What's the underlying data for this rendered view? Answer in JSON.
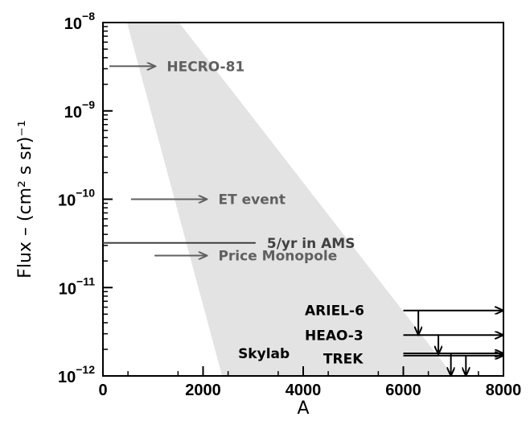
{
  "chart_data": {
    "type": "scatter",
    "title": "",
    "xlabel": "A",
    "ylabel": "Flux – (cm² s sr)⁻¹",
    "xlim": [
      0,
      8000
    ],
    "ylim": [
      1e-12,
      1e-08
    ],
    "yscale": "log",
    "x_ticks": [
      {
        "value": 0,
        "label": "0"
      },
      {
        "value": 2000,
        "label": "2000"
      },
      {
        "value": 4000,
        "label": "4000"
      },
      {
        "value": 6000,
        "label": "6000"
      },
      {
        "value": 8000,
        "label": "8000"
      }
    ],
    "y_ticks": [
      {
        "exp": -8,
        "base": "10",
        "sup": "−8"
      },
      {
        "exp": -9,
        "base": "10",
        "sup": "−9"
      },
      {
        "exp": -10,
        "base": "10",
        "sup": "−10"
      },
      {
        "exp": -11,
        "base": "10",
        "sup": "−11"
      },
      {
        "exp": -12,
        "base": "10",
        "sup": "−12"
      }
    ],
    "allowed_region": {
      "color": "#e3e3e3",
      "polygon": [
        [
          480,
          1e-08
        ],
        [
          1520,
          1e-08
        ],
        [
          7000,
          1e-12
        ],
        [
          2380,
          1e-12
        ]
      ]
    },
    "observations": [
      {
        "label": "HECRO-81",
        "color": "#606060",
        "flux": 3.2e-09,
        "x_start": 130,
        "x_end": 1050,
        "direction": "right"
      },
      {
        "label": "ET event",
        "color": "#606060",
        "flux": 1e-10,
        "x_start": 560,
        "x_end": 2080,
        "direction": "right"
      },
      {
        "label": "5/yr in AMS",
        "color": "#404040",
        "flux": 3.2e-11,
        "x_start": 0,
        "x_end": 3050,
        "direction": "none"
      },
      {
        "label": "Price Monopole",
        "color": "#606060",
        "flux": 2.3e-11,
        "x_start": 1030,
        "x_end": 2080,
        "direction": "right"
      }
    ],
    "limits": [
      {
        "label": "ARIEL-6",
        "flux": 5.5e-12,
        "x_start": 6000,
        "x_end": 8000,
        "down_at": 6300,
        "down_to": 2.9e-12
      },
      {
        "label": "HEAO-3",
        "flux": 2.9e-12,
        "x_start": 6000,
        "x_end": 8000,
        "down_at": 6700,
        "down_to": 1.75e-12
      },
      {
        "label": "Skylab",
        "flux": 1.8e-12,
        "x_start": 6000,
        "x_end": 8000,
        "down_at": 6950,
        "down_to": 1e-12
      },
      {
        "label": "TREK",
        "flux": 1.7e-12,
        "x_start": 6000,
        "x_end": 8000,
        "down_at": 7250,
        "down_to": 1e-12
      }
    ]
  }
}
